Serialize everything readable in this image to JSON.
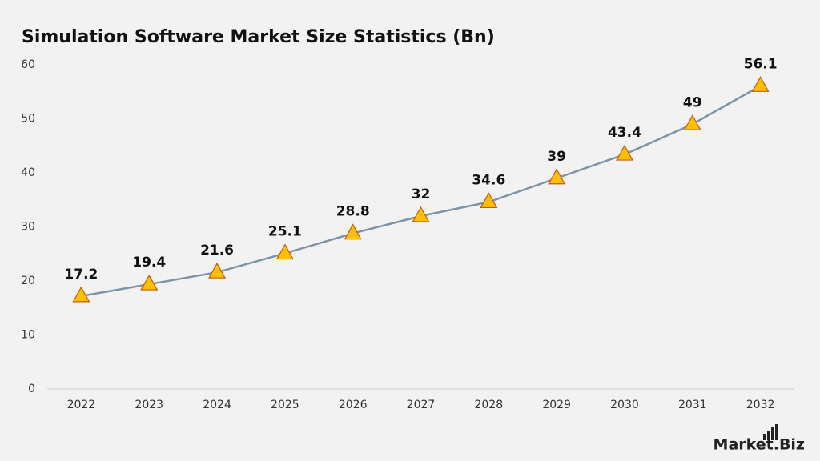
{
  "chart_data": {
    "type": "line",
    "title": "Simulation Software Market Size Statistics (Bn)",
    "categories": [
      "2022",
      "2023",
      "2024",
      "2025",
      "2026",
      "2027",
      "2028",
      "2029",
      "2030",
      "2031",
      "2032"
    ],
    "values": [
      17.2,
      19.4,
      21.6,
      25.1,
      28.8,
      32,
      34.6,
      39,
      43.4,
      49,
      56.1
    ],
    "color": "#7f93a6",
    "marker_color": "#ffc000",
    "marker_edge_color": "#c55a11",
    "ylim": [
      0,
      60
    ],
    "yticks": [
      0,
      10,
      20,
      30,
      40,
      50,
      60
    ],
    "grid": false,
    "watermark": "Market.Biz"
  }
}
